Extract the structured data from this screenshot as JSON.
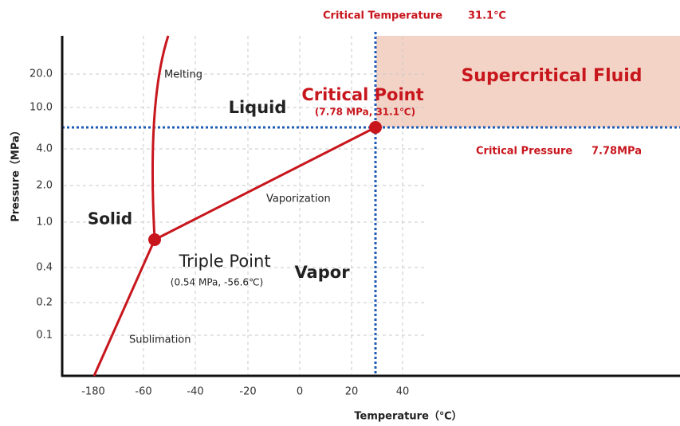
{
  "x_axis": {
    "title": "Temperature（℃）",
    "ticks": [
      "-180",
      "-60",
      "-40",
      "-20",
      "0",
      "20",
      "40"
    ]
  },
  "y_axis": {
    "title": "Pressure（MPa）",
    "ticks": [
      "20.0",
      "10.0",
      "4.0",
      "2.0",
      "1.0",
      "0.4",
      "0.2",
      "0.1"
    ]
  },
  "regions": {
    "solid": "Solid",
    "liquid": "Liquid",
    "vapor": "Vapor",
    "supercritical": "Supercritical Fluid"
  },
  "curves": {
    "melting": "Melting",
    "vaporization": "Vaporization",
    "sublimation": "Sublimation"
  },
  "critical_point": {
    "label": "Critical Point",
    "coords": "(7.78 MPa, 31.1℃)"
  },
  "triple_point": {
    "label": "Triple Point",
    "coords": "(0.54 MPa, -56.6℃)"
  },
  "critical_temperature": {
    "label": "Critical Temperature",
    "value": "31.1℃"
  },
  "critical_pressure": {
    "label": "Critical Pressure",
    "value": "7.78MPa"
  }
}
